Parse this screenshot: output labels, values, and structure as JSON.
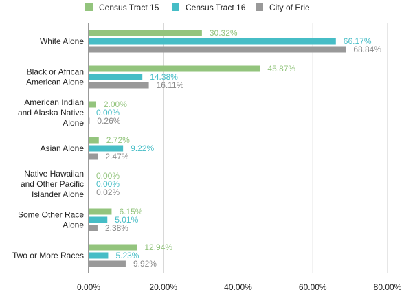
{
  "chart_data": {
    "type": "bar",
    "orientation": "horizontal",
    "legend_position": "top",
    "grid": true,
    "xlim": [
      0,
      80
    ],
    "x_ticks": [
      0,
      20,
      40,
      60,
      80
    ],
    "x_tick_labels": [
      "0.00%",
      "20.00%",
      "40.00%",
      "60.00%",
      "80.00%"
    ],
    "categories": [
      "White Alone",
      "Black or African American Alone",
      "American Indian and Alaska Native Alone",
      "Asian Alone",
      "Native Hawaiian and Other Pacific Islander Alone",
      "Some Other Race Alone",
      "Two or More Races"
    ],
    "category_lines": [
      [
        "White Alone"
      ],
      [
        "Black or African",
        "American Alone"
      ],
      [
        "American Indian",
        "and Alaska Native",
        "Alone"
      ],
      [
        "Asian Alone"
      ],
      [
        "Native Hawaiian",
        "and Other Pacific",
        "Islander Alone"
      ],
      [
        "Some Other Race",
        "Alone"
      ],
      [
        "Two or More Races"
      ]
    ],
    "series": [
      {
        "name": "Census Tract 15",
        "color": "#93c47d",
        "values": [
          30.32,
          45.87,
          2.0,
          2.72,
          0.0,
          6.15,
          12.94
        ],
        "labels": [
          "30.32%",
          "45.87%",
          "2.00%",
          "2.72%",
          "0.00%",
          "6.15%",
          "12.94%"
        ]
      },
      {
        "name": "Census Tract 16",
        "color": "#46bdc6",
        "values": [
          66.17,
          14.38,
          0.0,
          9.22,
          0.0,
          5.01,
          5.23
        ],
        "labels": [
          "66.17%",
          "14.38%",
          "0.00%",
          "9.22%",
          "0.00%",
          "5.01%",
          "5.23%"
        ]
      },
      {
        "name": "City of Erie",
        "color": "#999999",
        "values": [
          68.84,
          16.11,
          0.26,
          2.47,
          0.02,
          2.38,
          9.92
        ],
        "labels": [
          "68.84%",
          "16.11%",
          "0.26%",
          "2.47%",
          "0.02%",
          "2.38%",
          "9.92%"
        ]
      }
    ]
  }
}
